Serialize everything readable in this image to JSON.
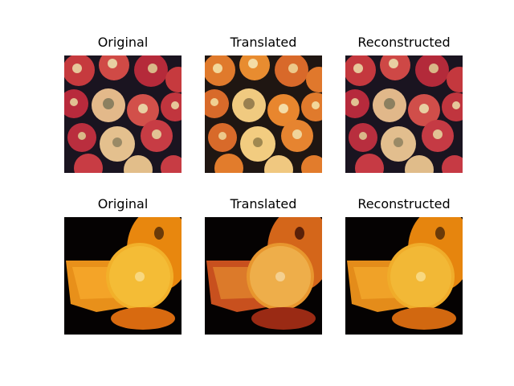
{
  "grid": {
    "rows": [
      {
        "subject": "apples",
        "panels": [
          {
            "title": "Original",
            "variant": "apples-original"
          },
          {
            "title": "Translated",
            "variant": "apples-translated"
          },
          {
            "title": "Reconstructed",
            "variant": "apples-reconstructed"
          }
        ]
      },
      {
        "subject": "oranges",
        "panels": [
          {
            "title": "Original",
            "variant": "oranges-original"
          },
          {
            "title": "Translated",
            "variant": "oranges-translated"
          },
          {
            "title": "Reconstructed",
            "variant": "oranges-reconstructed"
          }
        ]
      }
    ]
  },
  "palette": {
    "background": "#ffffff",
    "apple_dark_bg": "#1a1420",
    "apple_red": "#b8263a",
    "apple_pale": "#e8c79a",
    "apple_orange": "#e8802a",
    "orange_bg": "#050202",
    "orange_peel": "#e88a10",
    "orange_flesh": "#f2b024",
    "orange_deep": "#c2521a"
  }
}
